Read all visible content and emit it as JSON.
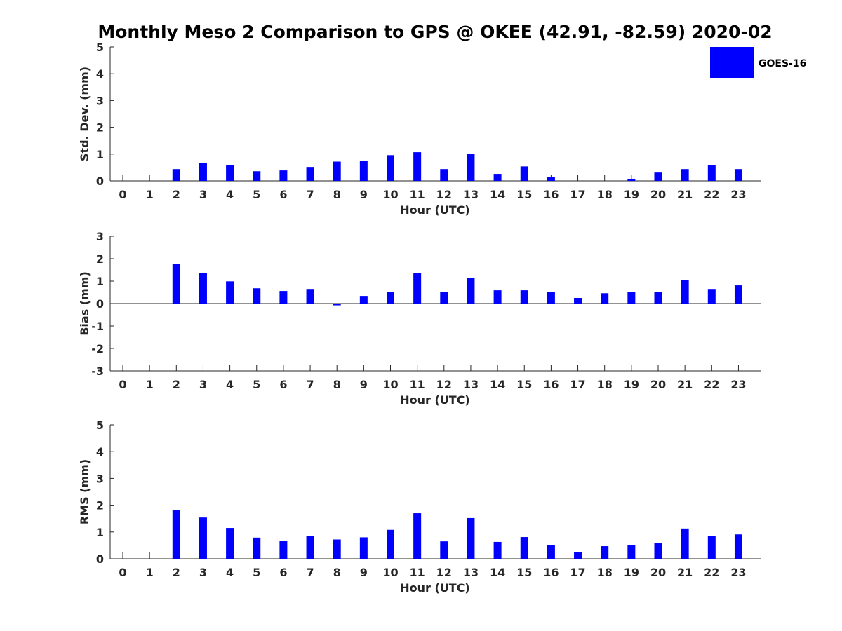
{
  "chart_data": {
    "type": "bar",
    "title": "Monthly Meso 2 Comparison to GPS @ OKEE (42.91, -82.59) 2020-02",
    "legend": {
      "label": "GOES-16",
      "color": "#0000ff",
      "placement": "top-right"
    },
    "categories": [
      "0",
      "1",
      "2",
      "3",
      "4",
      "5",
      "6",
      "7",
      "8",
      "9",
      "10",
      "11",
      "12",
      "13",
      "14",
      "15",
      "16",
      "17",
      "18",
      "19",
      "20",
      "21",
      "22",
      "23"
    ],
    "panels": [
      {
        "id": "stddev",
        "ylabel": "Std. Dev. (mm)",
        "xlabel": "Hour (UTC)",
        "ylim": [
          0,
          5
        ],
        "yticks": [
          "0",
          "1",
          "2",
          "3",
          "4",
          "5"
        ],
        "series": [
          {
            "name": "GOES-16",
            "values": [
              null,
              null,
              0.44,
              0.67,
              0.59,
              0.36,
              0.39,
              0.52,
              0.72,
              0.75,
              0.96,
              1.07,
              0.44,
              1.01,
              0.26,
              0.54,
              0.15,
              null,
              null,
              0.08,
              0.31,
              0.44,
              0.59,
              0.44
            ]
          }
        ]
      },
      {
        "id": "bias",
        "ylabel": "Bias (mm)",
        "xlabel": "Hour (UTC)",
        "ylim": [
          -3,
          3
        ],
        "yticks": [
          "-3",
          "-2",
          "-1",
          "0",
          "1",
          "2",
          "3"
        ],
        "series": [
          {
            "name": "GOES-16",
            "values": [
              null,
              null,
              1.78,
              1.37,
              0.99,
              0.68,
              0.56,
              0.65,
              -0.08,
              0.34,
              0.5,
              1.35,
              0.5,
              1.15,
              0.59,
              0.59,
              0.5,
              0.25,
              0.46,
              0.5,
              0.5,
              1.06,
              0.65,
              0.81
            ]
          }
        ]
      },
      {
        "id": "rms",
        "ylabel": "RMS (mm)",
        "xlabel": "Hour (UTC)",
        "ylim": [
          0,
          5
        ],
        "yticks": [
          "0",
          "1",
          "2",
          "3",
          "4",
          "5"
        ],
        "series": [
          {
            "name": "GOES-16",
            "values": [
              null,
              null,
              1.83,
              1.54,
              1.15,
              0.79,
              0.68,
              0.84,
              0.72,
              0.8,
              1.08,
              1.7,
              0.65,
              1.52,
              0.63,
              0.81,
              0.5,
              0.24,
              0.47,
              0.5,
              0.58,
              1.13,
              0.86,
              0.91
            ]
          }
        ]
      }
    ]
  }
}
